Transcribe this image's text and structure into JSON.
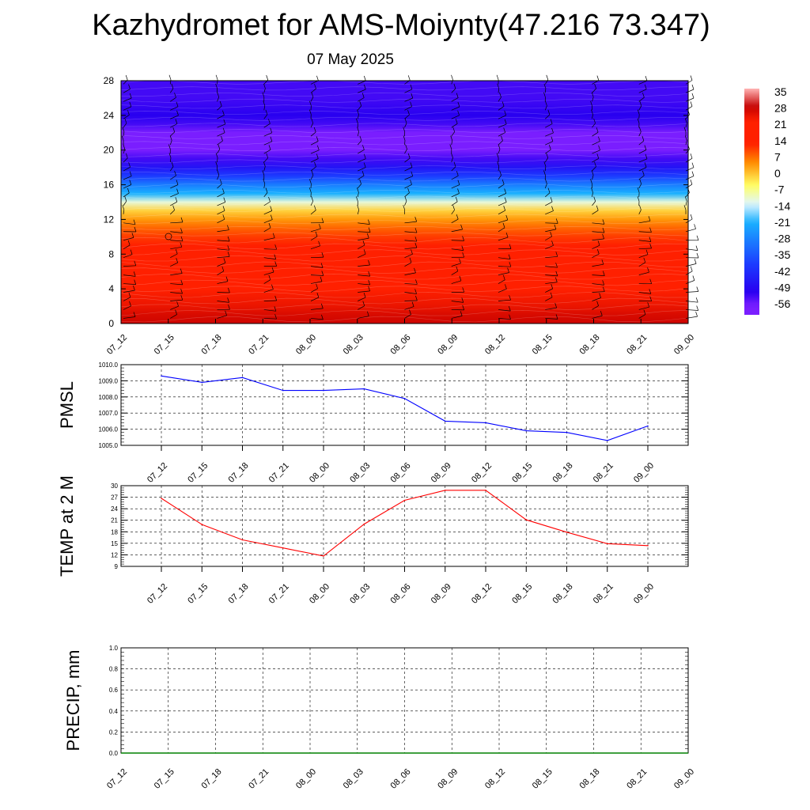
{
  "header": {
    "title": "Kazhydromet for AMS-Moiynty(47.216 73.347)",
    "subtitle": "07 May 2025"
  },
  "chart_data": [
    {
      "type": "heatmap",
      "name": "time-height temperature cross-section with wind barbs",
      "x_ticks": [
        "07_12",
        "07_15",
        "07_18",
        "07_21",
        "08_00",
        "08_03",
        "08_06",
        "08_09",
        "08_12",
        "08_15",
        "08_18",
        "08_21",
        "09_00"
      ],
      "y_ticks": [
        "0",
        "4",
        "8",
        "12",
        "16",
        "20",
        "24",
        "28"
      ],
      "ylim": [
        0,
        28
      ],
      "colorbar_labels": [
        "35",
        "28",
        "21",
        "14",
        "7",
        "0",
        "-7",
        "-14",
        "-21",
        "-28",
        "-35",
        "-42",
        "-49",
        "-56"
      ],
      "colorbar_range": [
        -60,
        38
      ],
      "temperature_profile": {
        "levels": [
          0,
          1,
          2,
          3,
          4,
          5,
          6,
          7,
          8,
          9,
          10,
          11,
          12,
          13,
          14,
          15,
          16,
          17,
          18,
          19,
          20,
          21,
          22,
          23,
          24,
          25,
          26,
          27,
          28
        ],
        "values": [
          29,
          28,
          26,
          25,
          23,
          22,
          21,
          18,
          16,
          14,
          12,
          9,
          5,
          0,
          -10,
          -20,
          -28,
          -38,
          -46,
          -52,
          -56,
          -58,
          -56,
          -52,
          -50,
          -51,
          -52,
          -52,
          -52
        ]
      },
      "colors": {
        "hot": "#c40000",
        "red": "#ff2000",
        "orange": "#ff8c00",
        "yellow": "#ffff66",
        "ice": "#dff6ff",
        "cyan": "#19b0ff",
        "blue": "#1c3cff",
        "deep_blue": "#2800f0",
        "violet": "#7a1eff",
        "light_red": "#ffb4b4"
      }
    },
    {
      "type": "line",
      "name": "sea level pressure",
      "ylabel": "PMSL",
      "x": [
        "07_12",
        "07_15",
        "07_18",
        "07_21",
        "08_00",
        "08_03",
        "08_06",
        "08_09",
        "08_12",
        "08_15",
        "08_18",
        "08_21",
        "09_00"
      ],
      "y": [
        1009.3,
        1008.9,
        1009.2,
        1008.4,
        1008.4,
        1008.5,
        1007.9,
        1006.5,
        1006.4,
        1005.9,
        1005.8,
        1005.3,
        1006.2
      ],
      "ylim": [
        1005.0,
        1010.0
      ],
      "y_ticks": [
        "1005.0",
        "1006.0",
        "1007.0",
        "1008.0",
        "1009.0",
        "1010.0"
      ],
      "color": "#0000ff"
    },
    {
      "type": "line",
      "name": "2 m temperature",
      "ylabel": "TEMP at 2 M",
      "x": [
        "07_12",
        "07_15",
        "07_18",
        "07_21",
        "08_00",
        "08_03",
        "08_06",
        "08_09",
        "08_12",
        "08_15",
        "08_18",
        "08_21",
        "09_00"
      ],
      "y": [
        26.7,
        19.9,
        15.9,
        13.8,
        11.7,
        20.0,
        26.2,
        28.8,
        28.8,
        21.1,
        17.9,
        14.9,
        14.4
      ],
      "ylim": [
        9,
        30
      ],
      "y_ticks": [
        "9",
        "12",
        "15",
        "18",
        "21",
        "24",
        "27",
        "30"
      ],
      "color": "#ff0000"
    },
    {
      "type": "line",
      "name": "precipitation",
      "ylabel": "PRECIP, mm",
      "x": [
        "07_12",
        "07_15",
        "07_18",
        "07_21",
        "08_00",
        "08_03",
        "08_06",
        "08_09",
        "08_12",
        "08_15",
        "08_18",
        "08_21",
        "09_00"
      ],
      "y": [
        0,
        0,
        0,
        0,
        0,
        0,
        0,
        0,
        0,
        0,
        0,
        0,
        0
      ],
      "ylim": [
        0,
        1
      ],
      "y_ticks": [
        "0.0",
        "0.2",
        "0.4",
        "0.6",
        "0.8",
        "1.0"
      ],
      "color": "#008000"
    }
  ]
}
